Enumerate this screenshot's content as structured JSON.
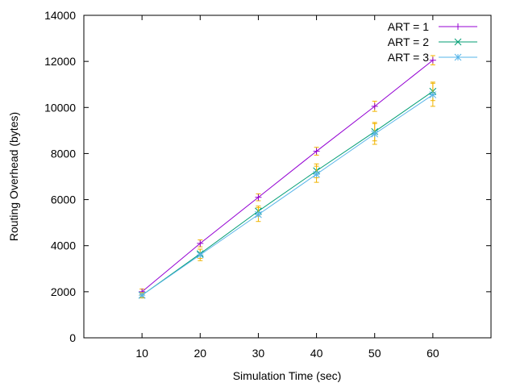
{
  "chart_data": {
    "type": "line",
    "xlabel": "Simulation Time (sec)",
    "ylabel": "Routing Overhead (bytes)",
    "xlim": [
      0,
      70
    ],
    "ylim": [
      0,
      14000
    ],
    "x_ticks": [
      10,
      20,
      30,
      40,
      50,
      60
    ],
    "y_ticks": [
      0,
      2000,
      4000,
      6000,
      8000,
      10000,
      12000,
      14000
    ],
    "grid": false,
    "legend_position": "top-right",
    "errorbar_color": "#f0b400",
    "series": [
      {
        "name": "ART = 1",
        "color": "#9400d3",
        "marker": "plus",
        "x": [
          10,
          20,
          30,
          40,
          50,
          60
        ],
        "y": [
          2000,
          4100,
          6100,
          8100,
          10050,
          12050
        ],
        "err": [
          120,
          150,
          150,
          170,
          220,
          200
        ]
      },
      {
        "name": "ART = 2",
        "color": "#009e73",
        "marker": "cross",
        "x": [
          10,
          20,
          30,
          40,
          50,
          60
        ],
        "y": [
          1850,
          3650,
          5500,
          7250,
          8950,
          10700
        ],
        "err": [
          120,
          200,
          220,
          300,
          400,
          400
        ]
      },
      {
        "name": "ART = 3",
        "color": "#56b4e9",
        "marker": "star",
        "x": [
          10,
          20,
          30,
          40,
          50,
          60
        ],
        "y": [
          1850,
          3600,
          5350,
          7100,
          8850,
          10550
        ],
        "err": [
          100,
          250,
          300,
          350,
          450,
          500
        ]
      }
    ]
  }
}
